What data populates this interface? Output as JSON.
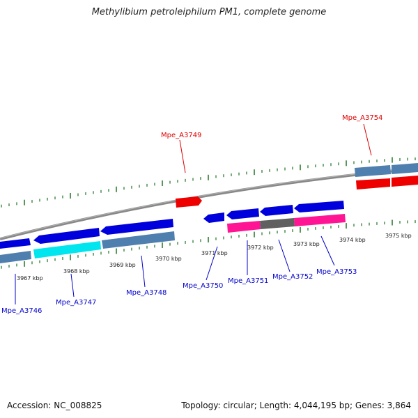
{
  "title": "Methylibium petroleiphilum PM1, complete genome",
  "footer": {
    "accession": "Accession: NC_008825",
    "topology": "Topology: circular; Length: 4,044,195 bp; Genes: 3,864"
  },
  "colors": {
    "backbone": "#8a8a8a",
    "tick": "#2e7d32",
    "forward_gene": "#ee0000",
    "reverse_gene": "#0000ee",
    "gene_label_forward": "#dd0000",
    "gene_label_reverse": "#0000cc"
  },
  "scale_labels": [
    "3967 kbp",
    "3968 kbp",
    "3969 kbp",
    "3970 kbp",
    "3971 kbp",
    "3972 kbp",
    "3973 kbp",
    "3974 kbp",
    "3975 kbp"
  ],
  "genes": [
    {
      "name": "Mpe_A3746",
      "strand": "reverse"
    },
    {
      "name": "Mpe_A3747",
      "strand": "reverse"
    },
    {
      "name": "Mpe_A3748",
      "strand": "reverse"
    },
    {
      "name": "Mpe_A3749",
      "strand": "forward"
    },
    {
      "name": "Mpe_A3750",
      "strand": "reverse"
    },
    {
      "name": "Mpe_A3751",
      "strand": "reverse"
    },
    {
      "name": "Mpe_A3752",
      "strand": "reverse"
    },
    {
      "name": "Mpe_A3753",
      "strand": "reverse"
    },
    {
      "name": "Mpe_A3754",
      "strand": "forward"
    }
  ]
}
